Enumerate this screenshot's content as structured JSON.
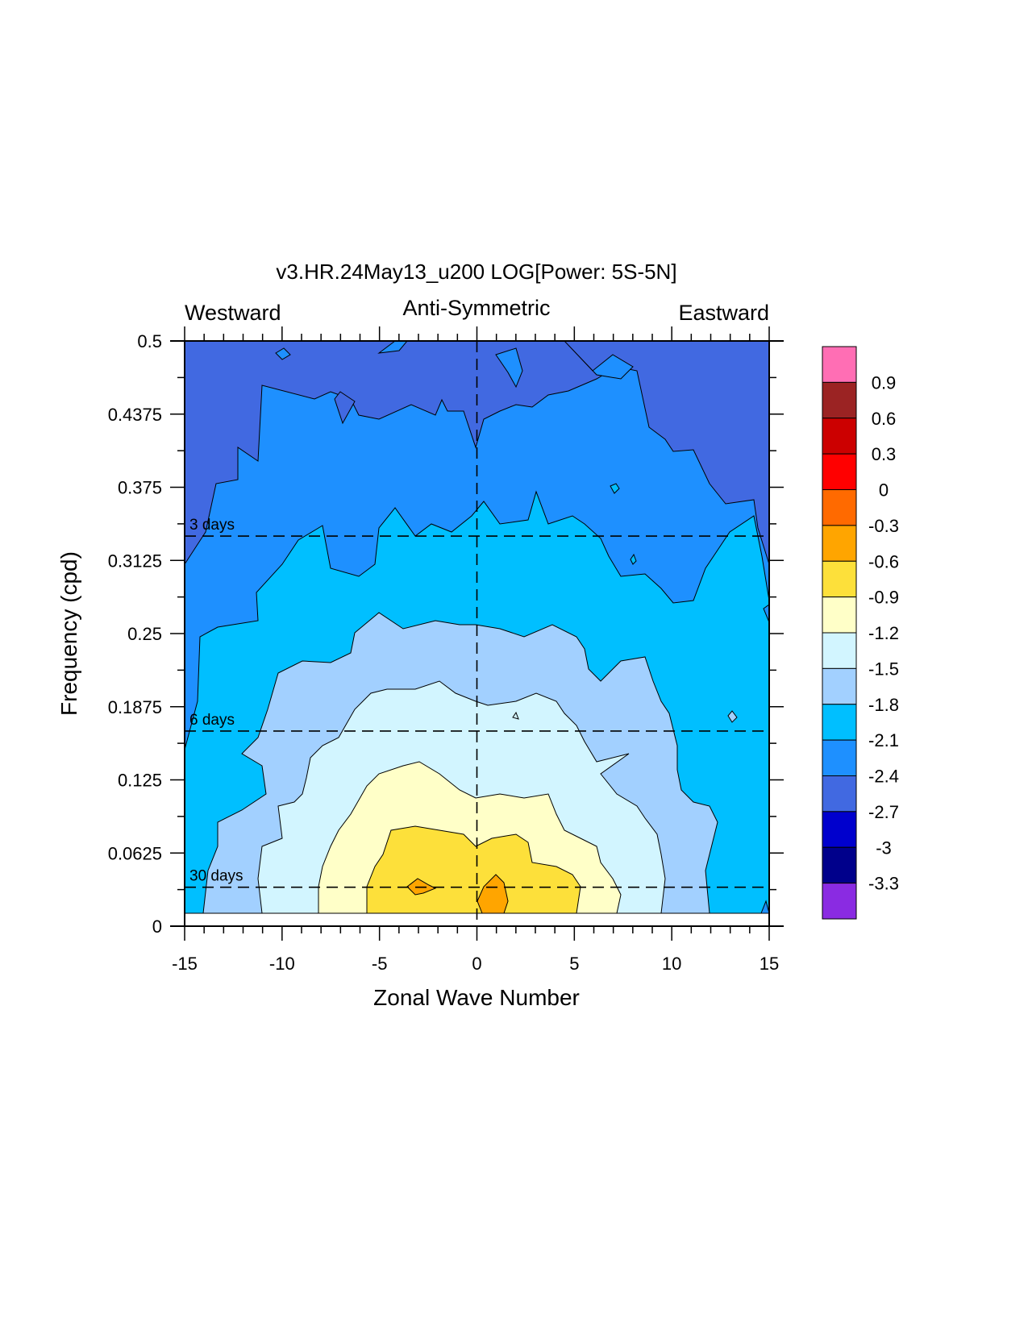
{
  "chart_data": {
    "type": "contour",
    "title": "v3.HR.24May13_u200 LOG[Power: 5S-5N]",
    "subtitle_left": "Westward",
    "subtitle_center": "Anti-Symmetric",
    "subtitle_right": "Eastward",
    "xlabel": "Zonal Wave Number",
    "ylabel": "Frequency (cpd)",
    "xlim": [
      -15,
      15
    ],
    "ylim": [
      0,
      0.5
    ],
    "xticks": [
      "-15",
      "-10",
      "-5",
      "0",
      "5",
      "10",
      "15"
    ],
    "yticks": [
      "0",
      "0.0625",
      "0.125",
      "0.1875",
      "0.25",
      "0.3125",
      "0.375",
      "0.4375",
      "0.5"
    ],
    "period_lines": [
      {
        "label": "3 days",
        "frequency": 0.3333
      },
      {
        "label": "6 days",
        "frequency": 0.1667
      },
      {
        "label": "30 days",
        "frequency": 0.0333
      }
    ],
    "zero_wavenumber_line": 0,
    "colorbar": {
      "labels": [
        "0.9",
        "0.6",
        "0.3",
        "0",
        "-0.3",
        "-0.6",
        "-0.9",
        "-1.2",
        "-1.5",
        "-1.8",
        "-2.1",
        "-2.4",
        "-2.7",
        "-3",
        "-3.3"
      ],
      "colors_top_to_bottom": [
        "#ff6eb4",
        "#9b2323",
        "#cc0000",
        "#ff0000",
        "#ff6a00",
        "#ffa500",
        "#fde03a",
        "#ffffc8",
        "#d2f5ff",
        "#a2d0ff",
        "#00bfff",
        "#1e90ff",
        "#4169e1",
        "#0000cd",
        "#00008b",
        "#8a2be2"
      ]
    },
    "contour_regions": [
      {
        "level": -2.7,
        "color": "#4169e1",
        "description": "outer background"
      },
      {
        "level": -2.4,
        "color": "#1e90ff",
        "description": "dome up to about 0.45 cpd"
      },
      {
        "level": -2.1,
        "color": "#00bfff",
        "description": "dome up to about 0.33 cpd"
      },
      {
        "level": -1.8,
        "color": "#a2d0ff",
        "description": "dome up to about 0.25 cpd"
      },
      {
        "level": -1.5,
        "color": "#d2f5ff",
        "description": "dome up to about 0.19 cpd"
      },
      {
        "level": -1.2,
        "color": "#ffffc8",
        "description": "dome up to about 0.13 cpd"
      },
      {
        "level": -0.9,
        "color": "#fde03a",
        "description": "core near wavenumber -5 to 5, below 0.08 cpd"
      },
      {
        "level": -0.6,
        "color": "#ffa500",
        "description": "peaks near wavenumber 1 and -3 at about 0.03 cpd"
      }
    ]
  }
}
